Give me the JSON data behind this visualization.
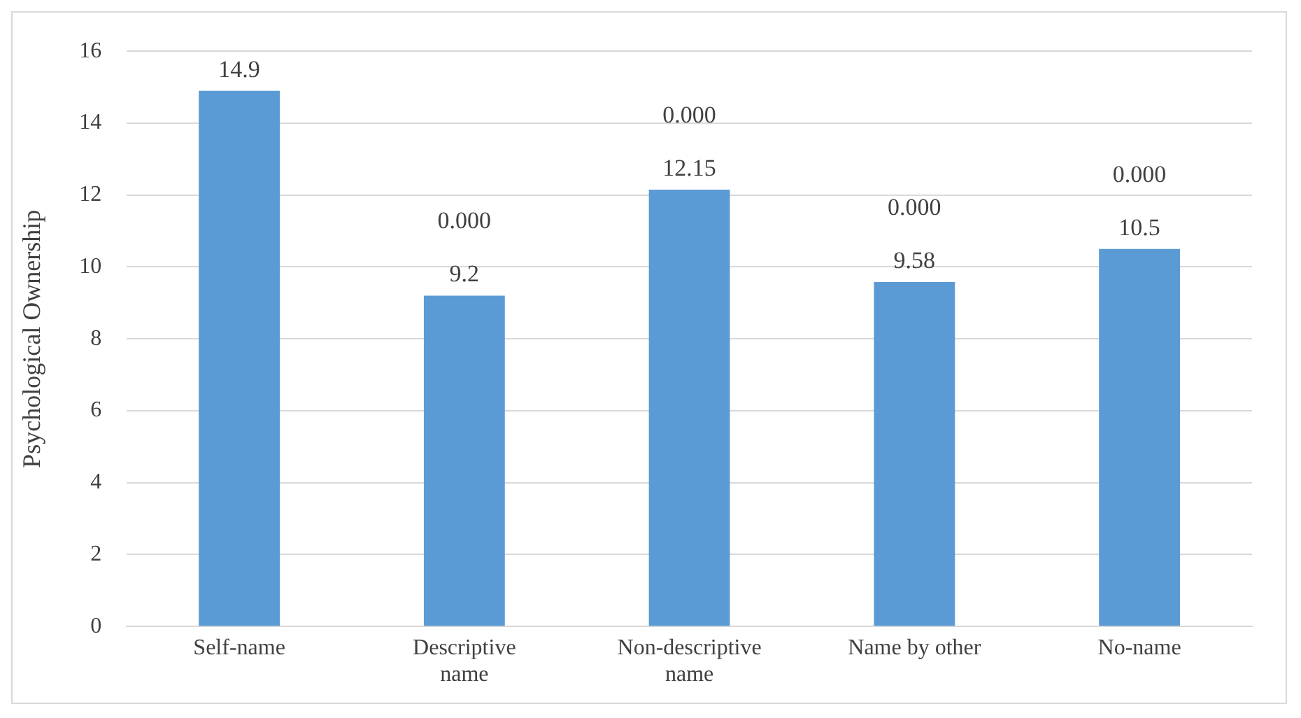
{
  "chart_data": {
    "type": "bar",
    "ylabel": "Psychological Ownership",
    "categories": [
      "Self-name",
      "Descriptive name",
      "Non-descriptive name",
      "Name by other",
      "No-name"
    ],
    "values": [
      14.9,
      9.2,
      12.15,
      9.58,
      10.5
    ],
    "color": "#5b9bd5",
    "ylim": [
      0,
      16
    ],
    "yticks": [
      0,
      2,
      4,
      6,
      8,
      10,
      12,
      14,
      16
    ],
    "grid": "y",
    "data_labels": true,
    "annotations": [
      "0.000",
      "0.000",
      "0.000",
      "0.000"
    ]
  }
}
